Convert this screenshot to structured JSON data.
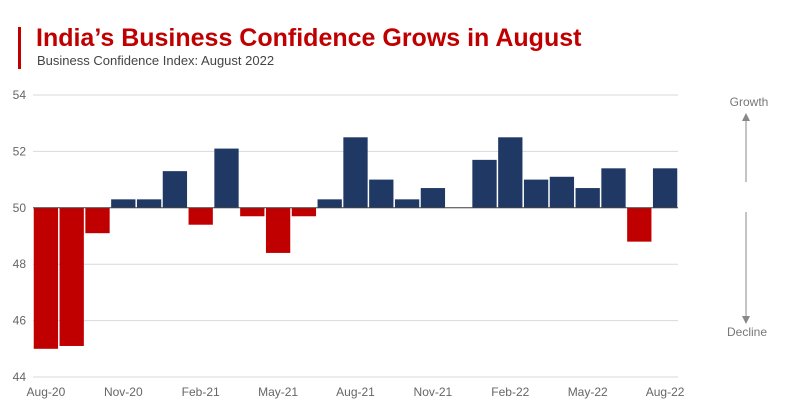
{
  "chart_data": {
    "type": "bar",
    "title": "India’s Business Confidence Grows in August",
    "subtitle": "Business Confidence Index: August 2022",
    "baseline": 50,
    "ylim": [
      44,
      54
    ],
    "yticks": [
      44,
      46,
      48,
      50,
      52,
      54
    ],
    "xtick_labels": [
      "Aug-20",
      "Nov-20",
      "Feb-21",
      "May-21",
      "Aug-21",
      "Nov-21",
      "Feb-22",
      "May-22",
      "Aug-22"
    ],
    "categories": [
      "Aug-20",
      "Sep-20",
      "Oct-20",
      "Nov-20",
      "Dec-20",
      "Jan-21",
      "Feb-21",
      "Mar-21",
      "Apr-21",
      "May-21",
      "Jun-21",
      "Jul-21",
      "Aug-21",
      "Sep-21",
      "Oct-21",
      "Nov-21",
      "Dec-21",
      "Jan-22",
      "Feb-22",
      "Mar-22",
      "Apr-22",
      "May-22",
      "Jun-22",
      "Jul-22",
      "Aug-22"
    ],
    "values": [
      45.0,
      45.1,
      49.1,
      50.3,
      50.3,
      51.3,
      49.4,
      52.1,
      49.7,
      48.4,
      49.7,
      50.3,
      52.5,
      51.0,
      50.3,
      50.7,
      50.0,
      51.7,
      52.5,
      51.0,
      51.1,
      50.7,
      51.4,
      48.8,
      51.4
    ],
    "annotations": {
      "up": "Growth",
      "down": "Decline"
    },
    "grid": true,
    "legend": "none"
  },
  "colors": {
    "positive": "#1f3864",
    "negative": "#c00000",
    "title": "#c00000",
    "accent": "#c00000",
    "grid": "#d9d9d9",
    "arrow": "#888888"
  }
}
